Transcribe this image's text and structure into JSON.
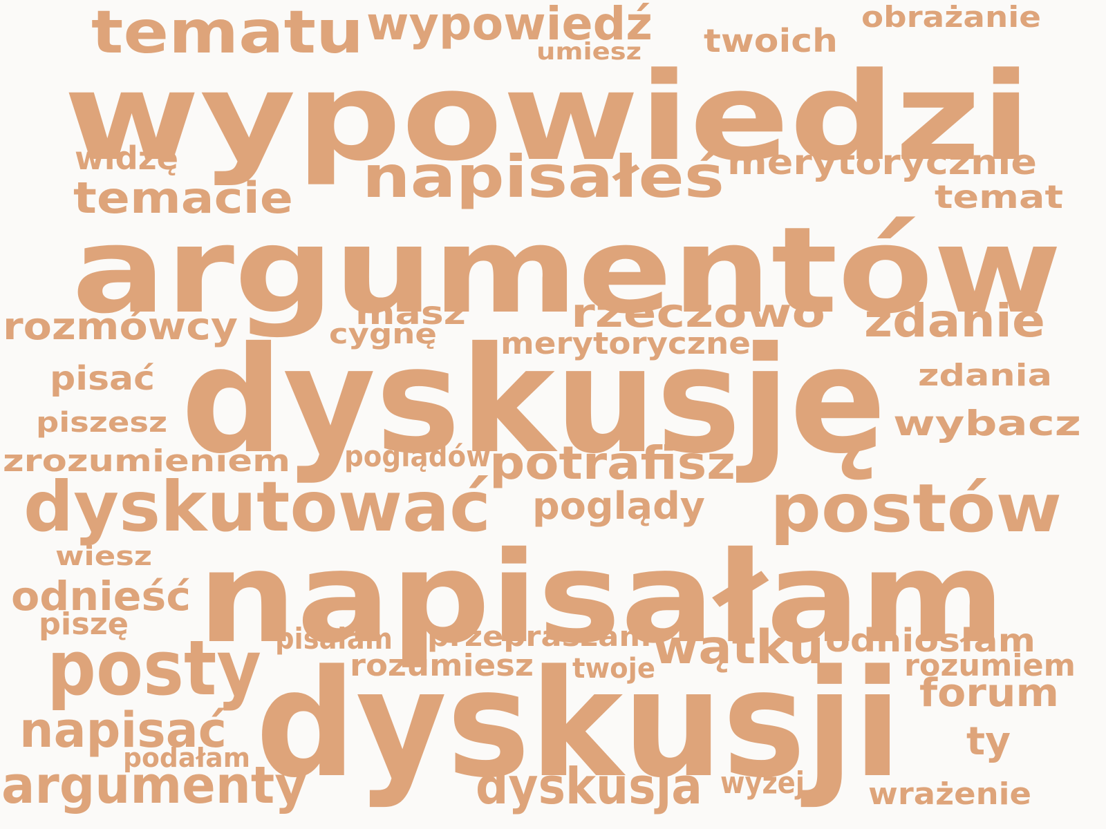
{
  "color": "#dea47a",
  "background": "#fbfaf8",
  "words": [
    {
      "text": "wypowiedzi"
    },
    {
      "text": "argumentów"
    },
    {
      "text": "dyskusję"
    },
    {
      "text": "napisałam"
    },
    {
      "text": "dyskusji"
    },
    {
      "text": "tematu"
    },
    {
      "text": "wypowiedź"
    },
    {
      "text": "obrażanie"
    },
    {
      "text": "twoich"
    },
    {
      "text": "umiesz"
    },
    {
      "text": "widzę"
    },
    {
      "text": "napisałeś"
    },
    {
      "text": "merytorycznie"
    },
    {
      "text": "temacie"
    },
    {
      "text": "temat"
    },
    {
      "text": "rozmówcy"
    },
    {
      "text": "masz"
    },
    {
      "text": "rzeczowo"
    },
    {
      "text": "zdanie"
    },
    {
      "text": "cygnę"
    },
    {
      "text": "merytoryczne"
    },
    {
      "text": "pisać"
    },
    {
      "text": "zdania"
    },
    {
      "text": "piszesz"
    },
    {
      "text": "wybacz"
    },
    {
      "text": "zrozumieniem"
    },
    {
      "text": "poglądów"
    },
    {
      "text": "potrafisz"
    },
    {
      "text": "dyskutować"
    },
    {
      "text": "poglądy"
    },
    {
      "text": "postów"
    },
    {
      "text": "wiesz"
    },
    {
      "text": "odnieść"
    },
    {
      "text": "piszę"
    },
    {
      "text": "posty"
    },
    {
      "text": "pisałam"
    },
    {
      "text": "przepraszam"
    },
    {
      "text": "wątku"
    },
    {
      "text": "odniosłam"
    },
    {
      "text": "rozumiesz"
    },
    {
      "text": "twoje"
    },
    {
      "text": "rozumiem"
    },
    {
      "text": "forum"
    },
    {
      "text": "napisać"
    },
    {
      "text": "podałam"
    },
    {
      "text": "ty"
    },
    {
      "text": "argumenty"
    },
    {
      "text": "dyskusja"
    },
    {
      "text": "wyżej"
    },
    {
      "text": "wrażenie"
    }
  ]
}
